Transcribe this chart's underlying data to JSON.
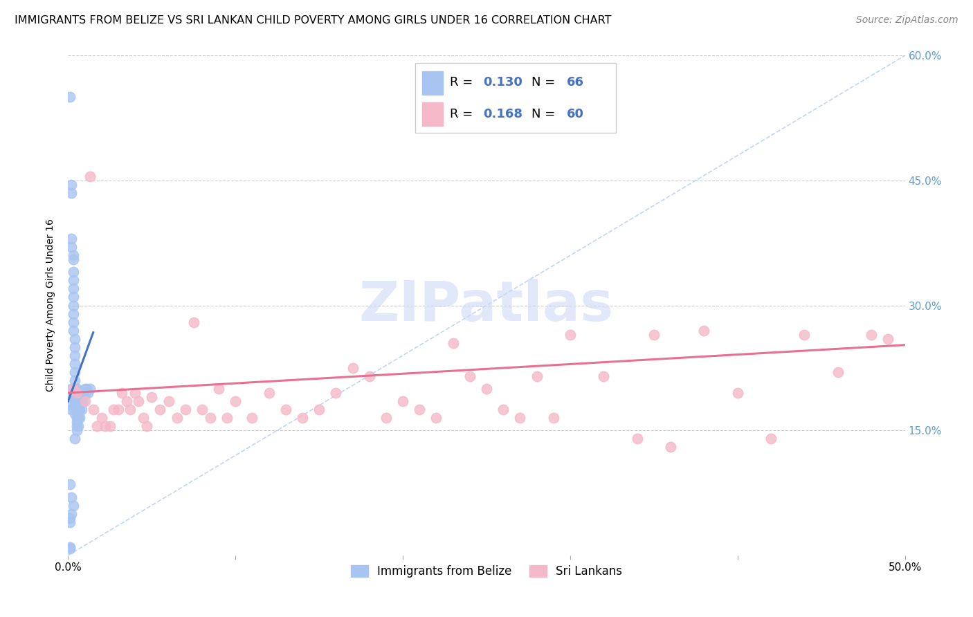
{
  "title": "IMMIGRANTS FROM BELIZE VS SRI LANKAN CHILD POVERTY AMONG GIRLS UNDER 16 CORRELATION CHART",
  "source": "Source: ZipAtlas.com",
  "ylabel": "Child Poverty Among Girls Under 16",
  "xlim": [
    0,
    0.5
  ],
  "ylim": [
    0,
    0.6
  ],
  "xtick_vals": [
    0.0,
    0.1,
    0.2,
    0.3,
    0.4,
    0.5
  ],
  "xticklabels": [
    "0.0%",
    "",
    "",
    "",
    "",
    "50.0%"
  ],
  "ytick_vals": [
    0.0,
    0.15,
    0.3,
    0.45,
    0.6
  ],
  "right_yticklabels": [
    "",
    "15.0%",
    "30.0%",
    "45.0%",
    "60.0%"
  ],
  "blue_scatter_color": "#a8c4f0",
  "blue_line_color": "#4472C4",
  "pink_scatter_color": "#f4b8c8",
  "pink_line_color": "#e87090",
  "diag_line_color": "#a8c4f0",
  "right_tick_color": "#5b9bd5",
  "grid_color": "#cccccc",
  "label1": "Immigrants from Belize",
  "label2": "Sri Lankans",
  "legend_r1": "R = 0.130",
  "legend_n1": "N = 66",
  "legend_r2": "R = 0.168",
  "legend_n2": "N = 60",
  "legend_val_color": "#4472C4",
  "watermark_color": "#ccdaf5",
  "background_color": "#ffffff",
  "title_fontsize": 11.5,
  "source_fontsize": 10,
  "tick_fontsize": 11,
  "ylabel_fontsize": 10,
  "legend_fontsize": 12,
  "belize_x": [
    0.001,
    0.001,
    0.001,
    0.001,
    0.002,
    0.002,
    0.002,
    0.002,
    0.002,
    0.002,
    0.002,
    0.002,
    0.003,
    0.003,
    0.003,
    0.003,
    0.003,
    0.003,
    0.003,
    0.003,
    0.003,
    0.003,
    0.003,
    0.004,
    0.004,
    0.004,
    0.004,
    0.004,
    0.004,
    0.004,
    0.004,
    0.004,
    0.004,
    0.005,
    0.005,
    0.005,
    0.005,
    0.005,
    0.005,
    0.005,
    0.005,
    0.006,
    0.006,
    0.006,
    0.006,
    0.006,
    0.007,
    0.007,
    0.007,
    0.007,
    0.008,
    0.008,
    0.008,
    0.009,
    0.009,
    0.01,
    0.01,
    0.011,
    0.012,
    0.013,
    0.001,
    0.001,
    0.002,
    0.003,
    0.002,
    0.004
  ],
  "belize_y": [
    0.55,
    0.045,
    0.04,
    0.085,
    0.445,
    0.435,
    0.38,
    0.37,
    0.2,
    0.19,
    0.18,
    0.175,
    0.36,
    0.355,
    0.34,
    0.33,
    0.32,
    0.31,
    0.3,
    0.29,
    0.28,
    0.27,
    0.2,
    0.26,
    0.25,
    0.24,
    0.23,
    0.22,
    0.21,
    0.2,
    0.19,
    0.18,
    0.17,
    0.2,
    0.195,
    0.185,
    0.175,
    0.165,
    0.16,
    0.155,
    0.15,
    0.195,
    0.185,
    0.175,
    0.165,
    0.155,
    0.195,
    0.185,
    0.175,
    0.165,
    0.195,
    0.185,
    0.175,
    0.195,
    0.185,
    0.2,
    0.195,
    0.2,
    0.195,
    0.2,
    0.01,
    0.008,
    0.07,
    0.06,
    0.05,
    0.14
  ],
  "srilanka_x": [
    0.003,
    0.005,
    0.01,
    0.015,
    0.02,
    0.025,
    0.03,
    0.035,
    0.04,
    0.045,
    0.05,
    0.055,
    0.06,
    0.065,
    0.07,
    0.075,
    0.08,
    0.085,
    0.09,
    0.095,
    0.1,
    0.11,
    0.12,
    0.13,
    0.14,
    0.15,
    0.16,
    0.17,
    0.18,
    0.19,
    0.2,
    0.21,
    0.22,
    0.23,
    0.24,
    0.25,
    0.26,
    0.27,
    0.28,
    0.29,
    0.3,
    0.32,
    0.34,
    0.36,
    0.38,
    0.4,
    0.42,
    0.44,
    0.46,
    0.48,
    0.013,
    0.017,
    0.022,
    0.027,
    0.032,
    0.037,
    0.042,
    0.047,
    0.35,
    0.49
  ],
  "srilanka_y": [
    0.2,
    0.195,
    0.185,
    0.175,
    0.165,
    0.155,
    0.175,
    0.185,
    0.195,
    0.165,
    0.19,
    0.175,
    0.185,
    0.165,
    0.175,
    0.28,
    0.175,
    0.165,
    0.2,
    0.165,
    0.185,
    0.165,
    0.195,
    0.175,
    0.165,
    0.175,
    0.195,
    0.225,
    0.215,
    0.165,
    0.185,
    0.175,
    0.165,
    0.255,
    0.215,
    0.2,
    0.175,
    0.165,
    0.215,
    0.165,
    0.265,
    0.215,
    0.14,
    0.13,
    0.27,
    0.195,
    0.14,
    0.265,
    0.22,
    0.265,
    0.455,
    0.155,
    0.155,
    0.175,
    0.195,
    0.175,
    0.185,
    0.155,
    0.265,
    0.26
  ],
  "blue_trend_x": [
    0.0,
    0.015
  ],
  "blue_trend_slope": 5.5,
  "blue_trend_intercept": 0.185,
  "pink_trend_x": [
    0.0,
    0.5
  ],
  "pink_trend_slope": 0.115,
  "pink_trend_intercept": 0.195
}
